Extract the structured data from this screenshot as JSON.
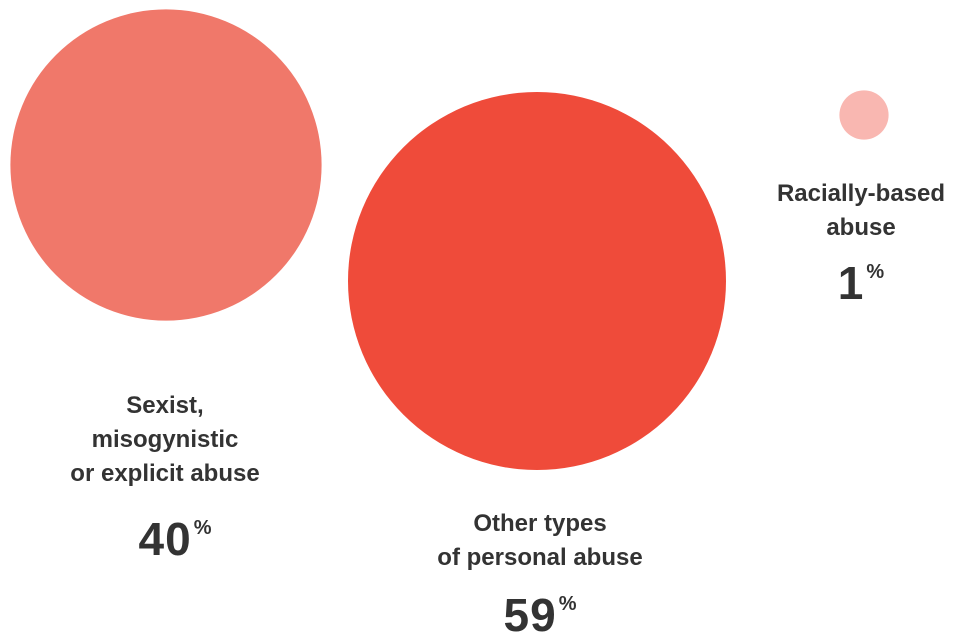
{
  "chart_data": {
    "type": "bubble",
    "unit": "%",
    "categories": [
      {
        "label_lines": [
          "Sexist,",
          "misogynistic",
          "or explicit abuse"
        ],
        "value": 40,
        "color": "#F0786A"
      },
      {
        "label_lines": [
          "Other types",
          "of personal abuse"
        ],
        "value": 59,
        "color": "#EF4B3A"
      },
      {
        "label_lines": [
          "Racially-based",
          "abuse"
        ],
        "value": 1,
        "color": "#F9B7B1"
      }
    ]
  }
}
